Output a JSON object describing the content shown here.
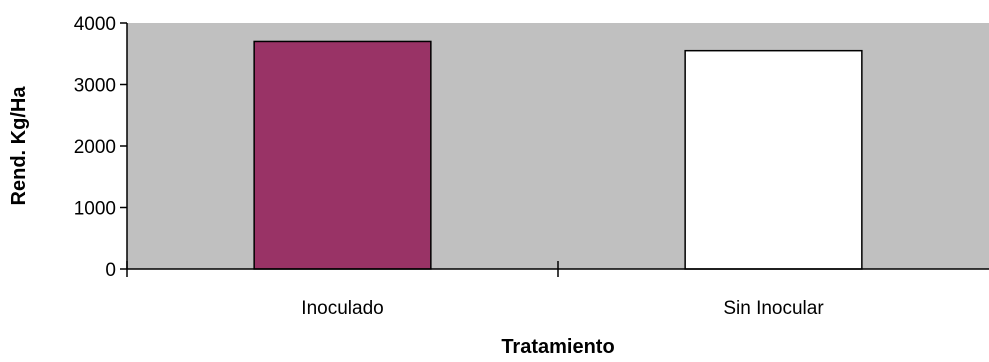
{
  "chart_data": {
    "type": "bar",
    "title": "",
    "xlabel": "Tratamiento",
    "ylabel": "Rend. Kg/Ha",
    "categories": [
      "Inoculado",
      "Sin Inocular"
    ],
    "values": [
      3700,
      3550
    ],
    "bar_colors": [
      "#993366",
      "#ffffff"
    ],
    "ylim": [
      0,
      4000
    ],
    "yticks": [
      0,
      1000,
      2000,
      3000,
      4000
    ],
    "plot_background": "#c0c0c0",
    "grid": false,
    "legend": "none"
  }
}
